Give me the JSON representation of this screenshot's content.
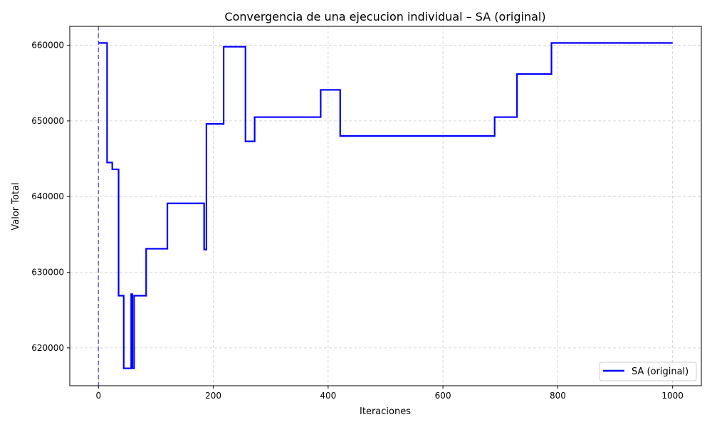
{
  "chart_data": {
    "type": "line",
    "title": "Convergencia de una ejecucion individual – SA (original)",
    "xlabel": "Iteraciones",
    "ylabel": "Valor Total",
    "xlim": [
      -50,
      1050
    ],
    "ylim": [
      615000,
      662500
    ],
    "xticks": [
      0,
      200,
      400,
      600,
      800,
      1000
    ],
    "xtick_labels": [
      "0",
      "200",
      "400",
      "600",
      "800",
      "1000"
    ],
    "yticks": [
      620000,
      630000,
      640000,
      650000,
      660000
    ],
    "ytick_labels": [
      "620000",
      "630000",
      "640000",
      "650000",
      "660000"
    ],
    "grid": true,
    "legend_position": "lower-right",
    "vline": {
      "x": 0,
      "color": "#6666cc",
      "style": "dashed"
    },
    "series": [
      {
        "name": "SA (original)",
        "color": "#0000ff",
        "points": [
          [
            0,
            660300
          ],
          [
            15,
            660300
          ],
          [
            15,
            644500
          ],
          [
            24,
            644500
          ],
          [
            24,
            643600
          ],
          [
            35,
            643600
          ],
          [
            35,
            626900
          ],
          [
            44,
            626900
          ],
          [
            44,
            617300
          ],
          [
            57,
            617300
          ],
          [
            57,
            627100
          ],
          [
            59,
            627100
          ],
          [
            59,
            617300
          ],
          [
            62,
            617300
          ],
          [
            62,
            626900
          ],
          [
            83,
            626900
          ],
          [
            83,
            633100
          ],
          [
            120,
            633100
          ],
          [
            120,
            639100
          ],
          [
            184,
            639100
          ],
          [
            184,
            633000
          ],
          [
            188,
            633000
          ],
          [
            188,
            649600
          ],
          [
            218,
            649600
          ],
          [
            218,
            659800
          ],
          [
            256,
            659800
          ],
          [
            256,
            647300
          ],
          [
            272,
            647300
          ],
          [
            272,
            650500
          ],
          [
            387,
            650500
          ],
          [
            387,
            654100
          ],
          [
            421,
            654100
          ],
          [
            421,
            648000
          ],
          [
            690,
            648000
          ],
          [
            690,
            650500
          ],
          [
            729,
            650500
          ],
          [
            729,
            656200
          ],
          [
            789,
            656200
          ],
          [
            789,
            660300
          ],
          [
            1000,
            660300
          ]
        ]
      }
    ]
  }
}
